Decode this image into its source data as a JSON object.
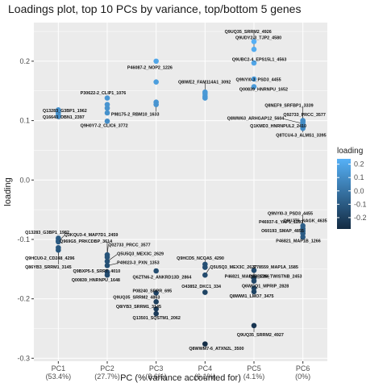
{
  "chart_data": {
    "type": "scatter",
    "title": "Loadings plot, top 10 PCs by variance, top/bottom 5 genes",
    "xlabel": "PC (% variance accounted for)",
    "ylabel": "loading",
    "ylim": [
      -0.305,
      0.265
    ],
    "yticks": [
      0.2,
      0.1,
      0.0,
      -0.1,
      -0.2,
      -0.3
    ],
    "ytick_labels": [
      "0.2",
      "0.1",
      "0.0",
      "-0.1",
      "-0.2",
      "-0.3"
    ],
    "categories": [
      "PC1",
      "PC2",
      "PC3",
      "PC4",
      "PC5",
      "PC6"
    ],
    "category_variance": [
      "(53.4%)",
      "(27.7%)",
      "(8.6%)",
      "(6.1%)",
      "(4.1%)",
      "(0%)"
    ],
    "grid": true,
    "legend": {
      "title": "loading",
      "position": "right",
      "ticks": [
        0.2,
        0.1,
        0.0,
        -0.1,
        -0.2
      ],
      "tick_labels": [
        "0.2",
        "0.1",
        "0.0",
        "-0.1",
        "-0.2"
      ],
      "range": [
        -0.285,
        0.24
      ],
      "colors": [
        "#132B43",
        "#56B1F7"
      ]
    },
    "points": [
      {
        "pc": "PC1",
        "y": 0.118,
        "label": "Q13283_G3BP1_1962",
        "lx": -0.32,
        "ly": 0.117
      },
      {
        "pc": "PC1",
        "y": 0.114,
        "label": ""
      },
      {
        "pc": "PC1",
        "y": 0.111,
        "label": ""
      },
      {
        "pc": "PC1",
        "y": 0.107,
        "label": "Q16643_DBN1_2397",
        "lx": -0.32,
        "ly": 0.106
      },
      {
        "pc": "PC1",
        "y": -0.098,
        "label": "Q13283_G3BP1_1982",
        "lx": -0.68,
        "ly": -0.088
      },
      {
        "pc": "PC1",
        "y": -0.102,
        "label": ""
      },
      {
        "pc": "PC1",
        "y": -0.104,
        "label": "Q3KQU3-4_MAP7D1_2459",
        "lx": 0.12,
        "ly": -0.092
      },
      {
        "pc": "PC1",
        "y": -0.114,
        "label": "Q86YB3_SRRM1_3145",
        "lx": -0.68,
        "ly": -0.146
      },
      {
        "pc": "PC1",
        "y": -0.118,
        "label": "Q9HCU0-2_CD248_4296",
        "lx": -0.68,
        "ly": -0.131
      },
      {
        "pc": "PC2",
        "y": 0.138,
        "label": "P30622-2_CLIP1_1076",
        "lx": -0.55,
        "ly": 0.147
      },
      {
        "pc": "PC2",
        "y": 0.127,
        "label": ""
      },
      {
        "pc": "PC2",
        "y": 0.121,
        "label": ""
      },
      {
        "pc": "PC2",
        "y": 0.113,
        "label": ""
      },
      {
        "pc": "PC2",
        "y": 0.099,
        "label": "Q9H0Y7-2_CLIC6_3772",
        "lx": -0.55,
        "ly": 0.092
      },
      {
        "pc": "PC2",
        "y": -0.126,
        "label": "Q02733_PRCC_3577",
        "lx": 0.02,
        "ly": -0.109
      },
      {
        "pc": "PC2",
        "y": -0.13,
        "label": "Q969G5_PRKCDBP_3614",
        "lx": -0.97,
        "ly": -0.103
      },
      {
        "pc": "PC2",
        "y": -0.137,
        "label": "Q5U5Q3_MEX3C_2629",
        "lx": 0.2,
        "ly": -0.124
      },
      {
        "pc": "PC2",
        "y": -0.144,
        "label": "P49023-3_PXN_1353",
        "lx": 0.2,
        "ly": -0.139
      },
      {
        "pc": "PC2",
        "y": -0.155,
        "label": "Q9BXP5-5_SRRT_4010",
        "lx": -0.7,
        "ly": -0.153
      },
      {
        "pc": "PC2",
        "y": -0.16,
        "label": "Q00839_HNRNPU_1648",
        "lx": -0.73,
        "ly": -0.168
      },
      {
        "pc": "PC3",
        "y": 0.2,
        "label": "P46087-2_NOP2_1226",
        "lx": -0.59,
        "ly": 0.19
      },
      {
        "pc": "PC3",
        "y": 0.165,
        "label": ""
      },
      {
        "pc": "PC3",
        "y": 0.131,
        "label": ""
      },
      {
        "pc": "PC3",
        "y": 0.127,
        "label": "P98175-2_RBM10_1633",
        "lx": -0.92,
        "ly": 0.111
      },
      {
        "pc": "PC3",
        "y": -0.153,
        "label": "Q6ZTN6-2_ANKRD13D_2864",
        "lx": -0.48,
        "ly": -0.163
      },
      {
        "pc": "PC3",
        "y": -0.19,
        "label": "P08240_SRPR_695",
        "lx": -0.48,
        "ly": -0.186
      },
      {
        "pc": "PC3",
        "y": -0.205,
        "label": "Q9UQ35_SRRM2_4863",
        "lx": -0.88,
        "ly": -0.197
      },
      {
        "pc": "PC3",
        "y": -0.217,
        "label": "Q8IYB3_SRRM1_3145",
        "lx": -0.82,
        "ly": -0.213
      },
      {
        "pc": "PC3",
        "y": -0.225,
        "label": "Q13501_SQSTM1_2062",
        "lx": -0.48,
        "ly": -0.232
      },
      {
        "pc": "PC4",
        "y": 0.148,
        "label": "Q8IWE2_FAM114A1_3092",
        "lx": -0.55,
        "ly": 0.165
      },
      {
        "pc": "PC4",
        "y": 0.145,
        "label": ""
      },
      {
        "pc": "PC4",
        "y": 0.141,
        "label": ""
      },
      {
        "pc": "PC4",
        "y": 0.138,
        "label": ""
      },
      {
        "pc": "PC4",
        "y": -0.142,
        "label": "Q9HCD5_NCOA5_4290",
        "lx": -0.58,
        "ly": -0.131
      },
      {
        "pc": "PC4",
        "y": -0.147,
        "label": ""
      },
      {
        "pc": "PC4",
        "y": -0.16,
        "label": "Q5U5Q3_MEX3C_2627",
        "lx": 0.1,
        "ly": -0.146
      },
      {
        "pc": "PC4",
        "y": -0.189,
        "label": "O43852_DKC1_334",
        "lx": -0.48,
        "ly": -0.179
      },
      {
        "pc": "PC4",
        "y": -0.276,
        "label": "Q8WWM7-6_ATXN2L_3500",
        "lx": -0.33,
        "ly": -0.283
      },
      {
        "pc": "PC5",
        "y": 0.233,
        "label": "Q9UQ35_SRRM2_4926",
        "lx": -0.6,
        "ly": 0.25
      },
      {
        "pc": "PC5",
        "y": 0.22,
        "label": "Q9UDY2-3_TJP2_4580",
        "lx": -0.38,
        "ly": 0.24
      },
      {
        "pc": "PC5",
        "y": 0.197,
        "label": "Q9UBC2-4_EPS15L1_4563",
        "lx": -0.45,
        "ly": 0.203
      },
      {
        "pc": "PC5",
        "y": 0.17,
        "label": "Q9NYI0-3_PSD3_4455",
        "lx": -0.37,
        "ly": 0.169
      },
      {
        "pc": "PC5",
        "y": 0.157,
        "label": "Q00839_HNRNPU_1652",
        "lx": -0.3,
        "ly": 0.153
      },
      {
        "pc": "PC5",
        "y": -0.152,
        "label": "P46821_MAP1B_1266",
        "lx": -0.6,
        "ly": -0.162
      },
      {
        "pc": "PC5",
        "y": -0.165,
        "label": "P78559_MAP1A_1585",
        "lx": -0.01,
        "ly": -0.146
      },
      {
        "pc": "PC5",
        "y": -0.17,
        "label": "Q13B726_TWISTNB_2453",
        "lx": -0.1,
        "ly": -0.162
      },
      {
        "pc": "PC5",
        "y": -0.182,
        "label": "Q6WCQ1_MPRIP_2828",
        "lx": -0.25,
        "ly": -0.178
      },
      {
        "pc": "PC5",
        "y": -0.188,
        "label": "Q8WWI1_LMO7_3475",
        "lx": -0.5,
        "ly": -0.195
      },
      {
        "pc": "PC5",
        "y": -0.245,
        "label": "Q9UQ35_SRRM2_4927",
        "lx": -0.35,
        "ly": -0.26
      },
      {
        "pc": "PC6",
        "y": 0.1,
        "label": "Q8NEF9_SRFBP1_3339",
        "lx": -0.78,
        "ly": 0.126
      },
      {
        "pc": "PC6",
        "y": 0.098,
        "label": "Q92733_PRCC_3577",
        "lx": -0.4,
        "ly": 0.11
      },
      {
        "pc": "PC6",
        "y": 0.095,
        "label": "Q8WW63_ARHGAP12_5604",
        "lx": -1.55,
        "ly": 0.104
      },
      {
        "pc": "PC6",
        "y": 0.09,
        "label": "Q1KMD3_HNRNPUL2_2410",
        "lx": -1.08,
        "ly": 0.091
      },
      {
        "pc": "PC6",
        "y": 0.087,
        "label": "Q8TCU4-3_ALMS1_3395",
        "lx": -0.55,
        "ly": 0.076
      },
      {
        "pc": "PC6",
        "y": -0.077,
        "label": "Q9NYI0-3_PSD3_4455",
        "lx": -0.72,
        "ly": -0.056
      },
      {
        "pc": "PC6",
        "y": -0.082,
        "label": "Q9UJT6_NAGK_4635",
        "lx": -0.4,
        "ly": -0.068
      },
      {
        "pc": "PC6",
        "y": -0.086,
        "label": "P46937-6_YAP1_1297",
        "lx": -0.9,
        "ly": -0.07
      },
      {
        "pc": "PC6",
        "y": -0.09,
        "label": "O60193_SMAP_4855",
        "lx": -0.85,
        "ly": -0.085
      },
      {
        "pc": "PC6",
        "y": -0.096,
        "label": "P46821_MAP1B_1266",
        "lx": -0.55,
        "ly": -0.102
      }
    ]
  }
}
